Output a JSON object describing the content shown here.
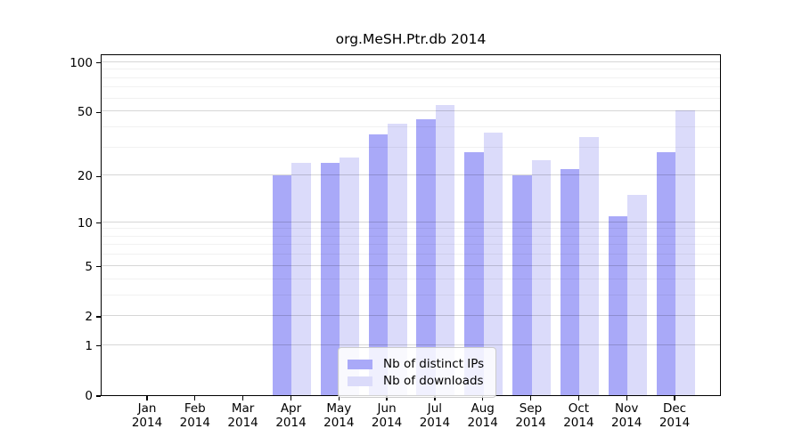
{
  "chart_data": {
    "type": "bar",
    "title": "org.MeSH.Ptr.db 2014",
    "categories": [
      "Jan 2014",
      "Feb 2014",
      "Mar 2014",
      "Apr 2014",
      "May 2014",
      "Jun 2014",
      "Jul 2014",
      "Aug 2014",
      "Sep 2014",
      "Oct 2014",
      "Nov 2014",
      "Dec 2014"
    ],
    "series": [
      {
        "name": "Nb of distinct IPs",
        "color": "#a9a9f8",
        "values": [
          0,
          0,
          0,
          20,
          24,
          36,
          45,
          28,
          20,
          22,
          11,
          28
        ]
      },
      {
        "name": "Nb of downloads",
        "color": "#dbdbfa",
        "values": [
          0,
          0,
          0,
          24,
          26,
          42,
          55,
          37,
          25,
          35,
          15,
          51
        ]
      }
    ],
    "scale": "log1p",
    "y_ticks": [
      0,
      1,
      2,
      5,
      10,
      20,
      50,
      100
    ],
    "y_minor_gridlines": [
      3,
      4,
      6,
      7,
      8,
      9,
      30,
      40,
      60,
      70,
      80,
      90
    ],
    "ylim": [
      0,
      113
    ],
    "xlabel": "",
    "ylabel": "",
    "grid": true,
    "legend_position": "bottom-center"
  }
}
